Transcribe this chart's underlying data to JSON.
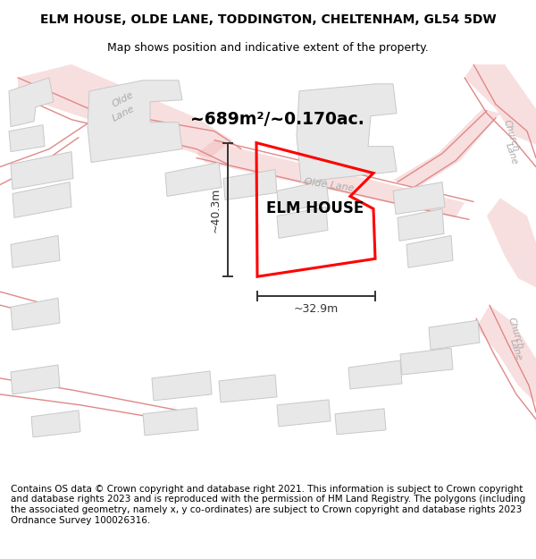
{
  "title_line1": "ELM HOUSE, OLDE LANE, TODDINGTON, CHELTENHAM, GL54 5DW",
  "title_line2": "Map shows position and indicative extent of the property.",
  "footer_text": "Contains OS data © Crown copyright and database right 2021. This information is subject to Crown copyright and database rights 2023 and is reproduced with the permission of HM Land Registry. The polygons (including the associated geometry, namely x, y co-ordinates) are subject to Crown copyright and database rights 2023 Ordnance Survey 100026316.",
  "map_bg": "#ffffff",
  "road_color": "#f0b8b8",
  "road_line_color": "#e08888",
  "building_fill": "#e8e8e8",
  "building_edge": "#c8c8c8",
  "highlight_edge": "#ff0000",
  "dim_color": "#333333",
  "area_text": "~689m²/~0.170ac.",
  "width_text": "~32.9m",
  "height_text": "~40.3m",
  "elm_house_label": "ELM HOUSE",
  "title_fontsize": 10,
  "subtitle_fontsize": 9,
  "footer_fontsize": 7.5,
  "road_label_color": "#aaaaaa",
  "road_label_size": 8
}
